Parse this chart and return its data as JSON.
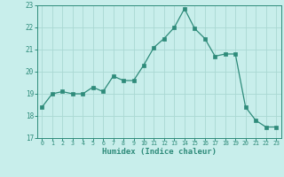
{
  "x": [
    0,
    1,
    2,
    3,
    4,
    5,
    6,
    7,
    8,
    9,
    10,
    11,
    12,
    13,
    14,
    15,
    16,
    17,
    18,
    19,
    20,
    21,
    22,
    23
  ],
  "y": [
    18.4,
    19.0,
    19.1,
    19.0,
    19.0,
    19.3,
    19.1,
    19.8,
    19.6,
    19.6,
    20.3,
    21.1,
    21.5,
    22.0,
    22.85,
    21.95,
    21.5,
    20.7,
    20.8,
    20.8,
    18.4,
    17.8,
    17.5,
    17.5
  ],
  "xlabel": "Humidex (Indice chaleur)",
  "ylim": [
    17,
    23
  ],
  "xlim": [
    -0.5,
    23.5
  ],
  "yticks": [
    17,
    18,
    19,
    20,
    21,
    22,
    23
  ],
  "xticks": [
    0,
    1,
    2,
    3,
    4,
    5,
    6,
    7,
    8,
    9,
    10,
    11,
    12,
    13,
    14,
    15,
    16,
    17,
    18,
    19,
    20,
    21,
    22,
    23
  ],
  "line_color": "#2e8b7a",
  "marker_color": "#2e8b7a",
  "bg_color": "#c8eeeb",
  "grid_color": "#aad8d3",
  "tick_color": "#2e8b7a",
  "label_color": "#2e8b7a"
}
